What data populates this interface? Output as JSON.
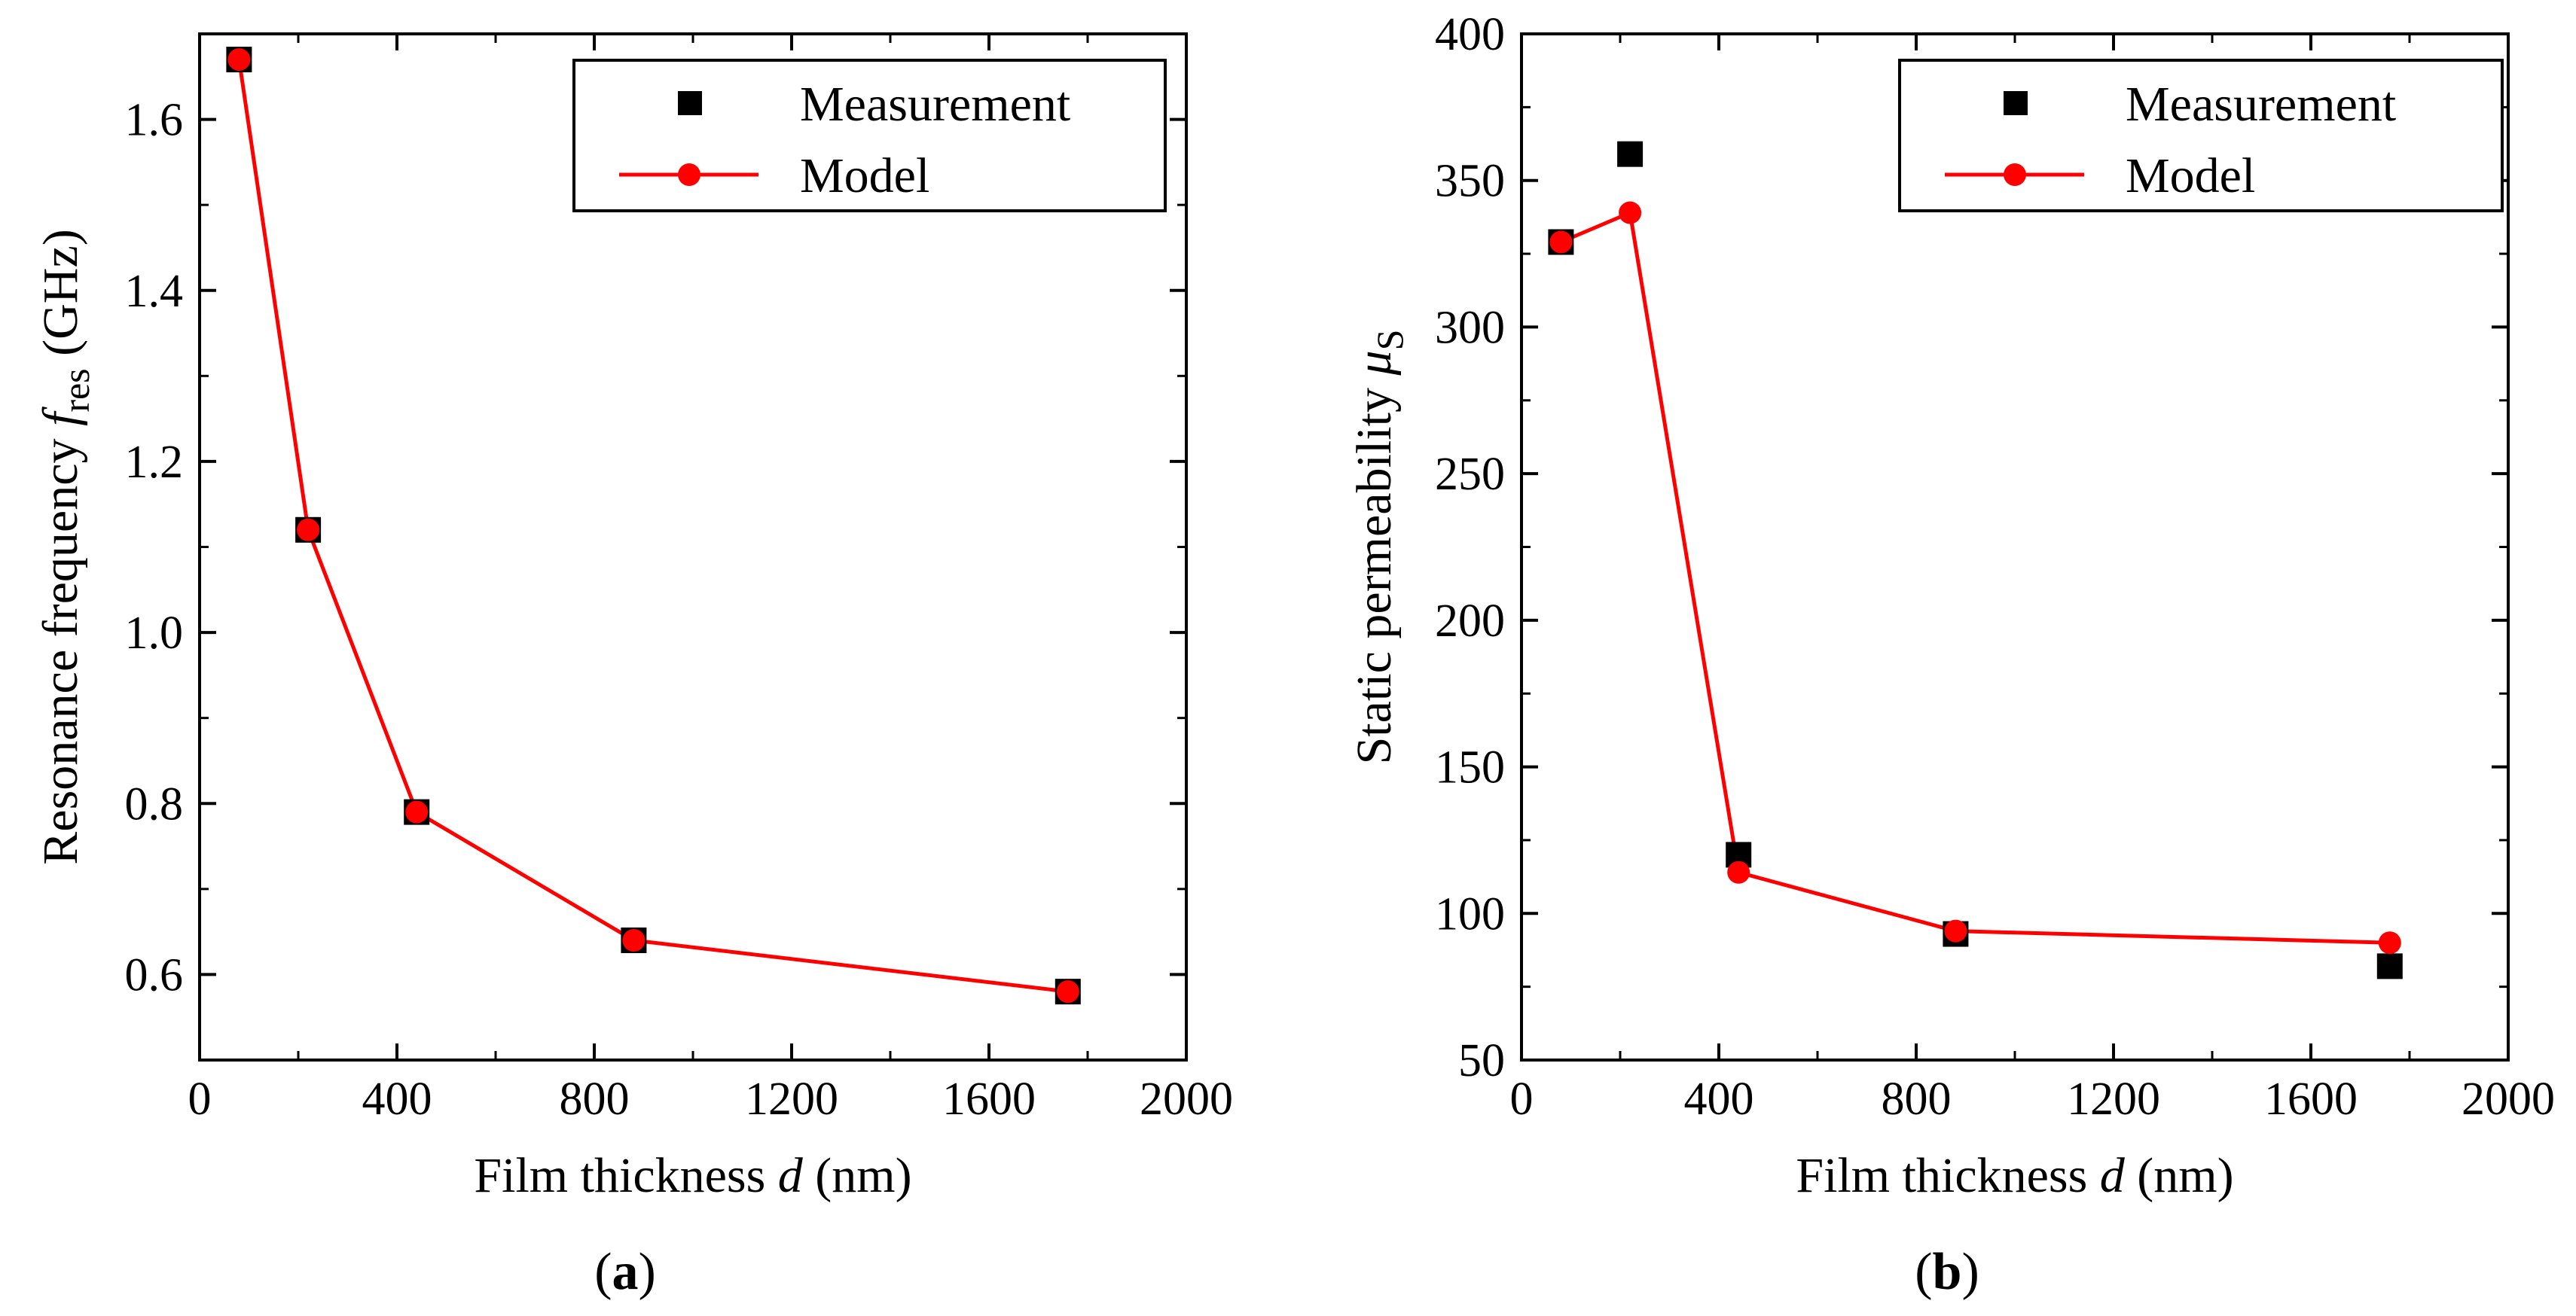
{
  "figure": {
    "background": "#ffffff"
  },
  "colors": {
    "measurement": "#000000",
    "model": "#ff0000",
    "axis": "#000000"
  },
  "chart_data": [
    {
      "id": "a",
      "type": "line",
      "panel_label": "a",
      "caption_open": "(",
      "caption_close": ")",
      "xlabel": {
        "text": "Film thickness ",
        "symbol": "d",
        "unit": " (nm)"
      },
      "ylabel": {
        "text": "Resonance frequency ",
        "symbol": "f",
        "subscript": "res",
        "unit": " (GHz)"
      },
      "xlim": [
        0,
        2000
      ],
      "ylim": [
        0.5,
        1.7
      ],
      "x_ticks": [
        0,
        400,
        800,
        1200,
        1600,
        2000
      ],
      "x_tick_labels": [
        "0",
        "400",
        "800",
        "1200",
        "1600",
        "2000"
      ],
      "y_ticks": [
        0.6,
        0.8,
        1.0,
        1.2,
        1.4,
        1.6
      ],
      "y_tick_labels": [
        "0.6",
        "0.8",
        "1.0",
        "1.2",
        "1.4",
        "1.6"
      ],
      "grid": false,
      "legend": {
        "position": "top-right",
        "entries": [
          "Measurement",
          "Model"
        ]
      },
      "series": [
        {
          "name": "Measurement",
          "style": "square-marker",
          "x": [
            80,
            220,
            440,
            880,
            1760
          ],
          "y": [
            1.67,
            1.12,
            0.79,
            0.64,
            0.58
          ]
        },
        {
          "name": "Model",
          "style": "line-circle",
          "x": [
            80,
            220,
            440,
            880,
            1760
          ],
          "y": [
            1.67,
            1.12,
            0.79,
            0.64,
            0.58
          ]
        }
      ]
    },
    {
      "id": "b",
      "type": "line",
      "panel_label": "b",
      "caption_open": "(",
      "caption_close": ")",
      "xlabel": {
        "text": "Film thickness ",
        "symbol": "d",
        "unit": " (nm)"
      },
      "ylabel": {
        "text": "Static permeability ",
        "symbol": "μ",
        "subscript": "S",
        "unit": ""
      },
      "xlim": [
        0,
        2000
      ],
      "ylim": [
        50,
        400
      ],
      "x_ticks": [
        0,
        400,
        800,
        1200,
        1600,
        2000
      ],
      "x_tick_labels": [
        "0",
        "400",
        "800",
        "1200",
        "1600",
        "2000"
      ],
      "y_ticks": [
        50,
        100,
        150,
        200,
        250,
        300,
        350,
        400
      ],
      "y_tick_labels": [
        "50",
        "100",
        "150",
        "200",
        "250",
        "300",
        "350",
        "400"
      ],
      "grid": false,
      "legend": {
        "position": "top-right",
        "entries": [
          "Measurement",
          "Model"
        ]
      },
      "series": [
        {
          "name": "Measurement",
          "style": "square-marker",
          "x": [
            80,
            220,
            440,
            880,
            1760
          ],
          "y": [
            329,
            359,
            120,
            93,
            82
          ]
        },
        {
          "name": "Model",
          "style": "line-circle",
          "x": [
            80,
            220,
            440,
            880,
            1760
          ],
          "y": [
            329,
            339,
            114,
            94,
            90
          ]
        }
      ]
    }
  ]
}
